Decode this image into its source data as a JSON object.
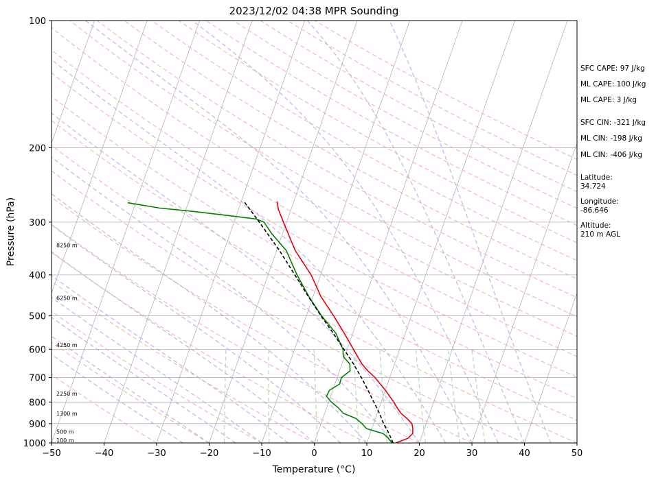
{
  "chart_data": {
    "type": "line",
    "subtype": "skew-t log-p sounding",
    "title": "2023/12/02 04:38 MPR Sounding",
    "xlabel": "Temperature (°C)",
    "ylabel": "Pressure (hPa)",
    "xlim": [
      -50,
      50
    ],
    "ylim": [
      1000,
      100
    ],
    "yscale": "log",
    "xticks": [
      -50,
      -40,
      -30,
      -20,
      -10,
      0,
      10,
      20,
      30,
      40,
      50
    ],
    "yticks": [
      1000,
      900,
      800,
      700,
      600,
      500,
      400,
      300,
      200,
      100
    ],
    "grid": true,
    "series": [
      {
        "color": "#e8000b",
        "style": "solid",
        "points": [
          [
            1000,
            15.5
          ],
          [
            975,
            17.5
          ],
          [
            950,
            18.1
          ],
          [
            925,
            17.8
          ],
          [
            900,
            17.3
          ],
          [
            875,
            16.0
          ],
          [
            850,
            14.5
          ],
          [
            825,
            13.4
          ],
          [
            800,
            12.4
          ],
          [
            750,
            10.0
          ],
          [
            700,
            7.2
          ],
          [
            675,
            5.4
          ],
          [
            650,
            3.8
          ],
          [
            600,
            1.2
          ],
          [
            550,
            -1.6
          ],
          [
            500,
            -4.8
          ],
          [
            450,
            -8.5
          ],
          [
            400,
            -11.8
          ],
          [
            350,
            -16.5
          ],
          [
            300,
            -20.6
          ],
          [
            280,
            -22.4
          ],
          [
            268,
            -23.2
          ]
        ]
      },
      {
        "color": "#008000",
        "style": "solid",
        "points": [
          [
            1000,
            14.8
          ],
          [
            975,
            13.8
          ],
          [
            950,
            12.5
          ],
          [
            925,
            9.0
          ],
          [
            900,
            7.8
          ],
          [
            875,
            6.3
          ],
          [
            850,
            3.5
          ],
          [
            825,
            2.2
          ],
          [
            800,
            0.5
          ],
          [
            775,
            -0.8
          ],
          [
            750,
            -0.6
          ],
          [
            725,
            0.9
          ],
          [
            700,
            0.8
          ],
          [
            675,
            2.0
          ],
          [
            650,
            1.5
          ],
          [
            625,
            -0.2
          ],
          [
            600,
            -0.8
          ],
          [
            550,
            -3.2
          ],
          [
            500,
            -7.1
          ],
          [
            450,
            -10.8
          ],
          [
            400,
            -14.5
          ],
          [
            350,
            -18.2
          ],
          [
            320,
            -22.0
          ],
          [
            300,
            -24.3
          ],
          [
            295,
            -26.0
          ],
          [
            290,
            -31.0
          ],
          [
            283,
            -38.5
          ],
          [
            278,
            -45.0
          ],
          [
            270,
            -51.5
          ]
        ]
      },
      {
        "color": "#000000",
        "style": "dashed",
        "points": [
          [
            1000,
            15.0
          ],
          [
            950,
            13.6
          ],
          [
            900,
            11.9
          ],
          [
            850,
            10.4
          ],
          [
            800,
            8.6
          ],
          [
            750,
            6.7
          ],
          [
            700,
            4.6
          ],
          [
            650,
            2.2
          ],
          [
            600,
            -0.6
          ],
          [
            550,
            -3.7
          ],
          [
            500,
            -7.2
          ],
          [
            450,
            -10.9
          ],
          [
            400,
            -14.9
          ],
          [
            350,
            -19.5
          ],
          [
            300,
            -25.2
          ],
          [
            268,
            -29.5
          ]
        ]
      }
    ],
    "height_labels": [
      {
        "text": "100 m",
        "pressure": 1000
      },
      {
        "text": "500 m",
        "pressure": 955
      },
      {
        "text": "1300 m",
        "pressure": 865
      },
      {
        "text": "2250 m",
        "pressure": 775
      },
      {
        "text": "4250 m",
        "pressure": 595
      },
      {
        "text": "6250 m",
        "pressure": 460
      },
      {
        "text": "8250 m",
        "pressure": 345
      }
    ],
    "annotations": [
      "SFC CAPE: 97 J/kg",
      "ML CAPE: 100 J/kg",
      "ML CAPE: 3 J/kg",
      "SFC CIN: -321 J/kg",
      "ML CIN: -198 J/kg",
      "ML CIN: -406 J/kg",
      "Latitude:\n34.724",
      "Longitude:\n-86.646",
      "Altitude:\n210 m AGL"
    ],
    "colors": {
      "isotherm": "#b3b3b3",
      "dry_adiabat": "#f4a4a4",
      "moist_adiabat": "#b0a8f0",
      "mixing_ratio": "#a8d8a8",
      "isobar": "#b3b3b3"
    }
  }
}
